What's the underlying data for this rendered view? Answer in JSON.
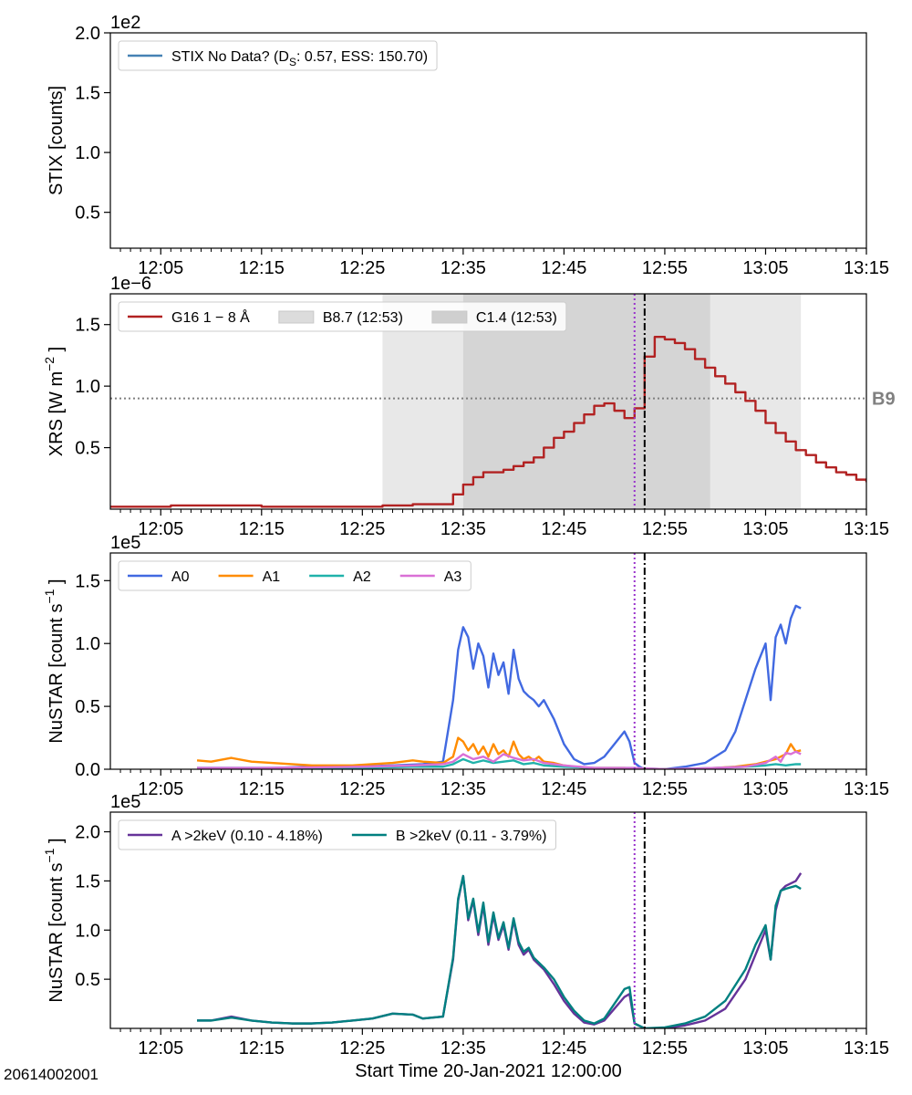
{
  "page": {
    "observation_id": "20614002001"
  },
  "chart_data": [
    {
      "type": "line",
      "panel": "stix",
      "ylabel": "STIX [counts]",
      "multiplier": "1e2",
      "ylim": [
        20,
        200
      ],
      "yticks": [
        50,
        100,
        150,
        200
      ],
      "ytick_labels": [
        "0.5",
        "1.0",
        "1.5",
        "2.0"
      ],
      "xlim_minutes": [
        0,
        75
      ],
      "xticks": [
        5,
        15,
        25,
        35,
        45,
        55,
        65,
        75
      ],
      "xtick_labels": [
        "12:05",
        "12:15",
        "12:25",
        "12:35",
        "12:45",
        "12:55",
        "13:05",
        "13:15"
      ],
      "legend": {
        "position": "upper-left",
        "entries": [
          {
            "name": "STIX No Data? (D",
            "subscript": "S",
            "suffix": ": 0.57, ESS: 150.70)",
            "color": "#4682b4"
          }
        ]
      },
      "series": []
    },
    {
      "type": "line",
      "panel": "xrs",
      "ylabel": "XRS [W m",
      "ylabel_exp": "−2",
      "ylabel_close": "]",
      "multiplier": "1e−6",
      "ylim": [
        0.0,
        1.75
      ],
      "yticks": [
        0.5,
        1.0,
        1.5
      ],
      "ytick_labels": [
        "0.5",
        "1.0",
        "1.5"
      ],
      "xlim_minutes": [
        0,
        75
      ],
      "xticks": [
        5,
        15,
        25,
        35,
        45,
        55,
        65,
        75
      ],
      "xtick_labels": [
        "12:05",
        "12:15",
        "12:25",
        "12:35",
        "12:45",
        "12:55",
        "13:05",
        "13:15"
      ],
      "threshold": {
        "value": 0.9,
        "label": "B9",
        "color": "#808080"
      },
      "shaded_spans": [
        {
          "name": "B8.7 (12:53)",
          "x0": 27,
          "x1": 59.5
        },
        {
          "name": "C1.4 (12:53)",
          "x0": 35,
          "x1": 68.5
        }
      ],
      "vlines": {
        "dotted": 52.0,
        "dashdot": 53.0,
        "dotted_color": "#9932cc",
        "dashdot_color": "#000000"
      },
      "legend": {
        "position": "upper-left",
        "entries": [
          {
            "name": "G16 1 − 8 Å",
            "color": "#b22222"
          },
          {
            "name": "B8.7 (12:53)",
            "color": "#dcdcdc"
          },
          {
            "name": "C1.4 (12:53)",
            "color": "#cfcfcf"
          }
        ]
      },
      "series": [
        {
          "name": "G16 1 − 8 Å",
          "color": "#b22222",
          "step": true,
          "x": [
            0,
            3,
            6,
            9,
            12,
            15,
            18,
            21,
            24,
            27,
            30,
            33,
            34,
            35,
            36,
            37,
            38,
            39,
            40,
            41,
            42,
            43,
            44,
            45,
            46,
            47,
            48,
            49,
            50,
            51,
            52,
            53,
            54,
            55,
            56,
            57,
            58,
            59,
            60,
            61,
            62,
            63,
            64,
            65,
            66,
            67,
            68,
            69,
            70,
            71,
            72,
            73,
            74,
            75
          ],
          "y": [
            0.02,
            0.02,
            0.03,
            0.03,
            0.03,
            0.02,
            0.02,
            0.02,
            0.02,
            0.03,
            0.04,
            0.04,
            0.12,
            0.2,
            0.26,
            0.3,
            0.3,
            0.32,
            0.35,
            0.38,
            0.42,
            0.5,
            0.58,
            0.63,
            0.7,
            0.77,
            0.84,
            0.86,
            0.8,
            0.74,
            0.82,
            1.24,
            1.4,
            1.38,
            1.35,
            1.3,
            1.22,
            1.15,
            1.08,
            1.02,
            0.95,
            0.88,
            0.8,
            0.7,
            0.62,
            0.55,
            0.48,
            0.44,
            0.38,
            0.34,
            0.3,
            0.28,
            0.24,
            0.22
          ]
        }
      ]
    },
    {
      "type": "line",
      "panel": "nustar-quadrants",
      "ylabel": "NuSTAR [count s",
      "ylabel_exp": "−1",
      "ylabel_close": "]",
      "multiplier": "1e5",
      "ylim": [
        0.0,
        1.72
      ],
      "yticks": [
        0.0,
        0.5,
        1.0,
        1.5
      ],
      "ytick_labels": [
        "0.0",
        "0.5",
        "1.0",
        "1.5"
      ],
      "xlim_minutes": [
        0,
        75
      ],
      "xticks": [
        5,
        15,
        25,
        35,
        45,
        55,
        65,
        75
      ],
      "xtick_labels": [
        "12:05",
        "12:15",
        "12:25",
        "12:35",
        "12:45",
        "12:55",
        "13:05",
        "13:15"
      ],
      "vlines": {
        "dotted": 52.0,
        "dashdot": 53.0,
        "dotted_color": "#9932cc",
        "dashdot_color": "#000000"
      },
      "legend": {
        "position": "upper-left",
        "entries": [
          {
            "name": "A0",
            "color": "#4169e1"
          },
          {
            "name": "A1",
            "color": "#ff8c00"
          },
          {
            "name": "A2",
            "color": "#20b2aa"
          },
          {
            "name": "A3",
            "color": "#da70d6"
          }
        ]
      },
      "series": [
        {
          "name": "A0",
          "color": "#4169e1",
          "x": [
            8.6,
            12,
            16,
            20,
            24,
            28,
            31,
            33,
            34,
            34.5,
            35,
            35.5,
            36,
            36.5,
            37,
            37.5,
            38,
            38.5,
            39,
            39.5,
            40,
            40.5,
            41,
            41.5,
            42,
            42.5,
            43,
            44,
            45,
            46,
            47,
            48,
            49,
            50,
            51,
            51.5,
            52,
            52.5,
            53,
            55,
            57,
            59,
            61,
            62,
            63,
            64,
            64.5,
            65,
            65.5,
            66,
            66.5,
            67,
            67.5,
            68,
            68.5
          ],
          "y": [
            0.01,
            0.01,
            0.01,
            0.02,
            0.02,
            0.03,
            0.04,
            0.06,
            0.55,
            0.95,
            1.13,
            1.05,
            0.8,
            1.0,
            0.9,
            0.65,
            0.92,
            0.75,
            0.85,
            0.6,
            0.95,
            0.72,
            0.62,
            0.58,
            0.55,
            0.5,
            0.55,
            0.4,
            0.2,
            0.08,
            0.04,
            0.05,
            0.1,
            0.2,
            0.3,
            0.22,
            0.05,
            0.02,
            0.0,
            0.0,
            0.02,
            0.05,
            0.15,
            0.3,
            0.55,
            0.8,
            0.9,
            1.0,
            0.55,
            1.05,
            1.15,
            1.0,
            1.2,
            1.3,
            1.28
          ]
        },
        {
          "name": "A1",
          "color": "#ff8c00",
          "x": [
            8.6,
            10,
            12,
            14,
            16,
            18,
            20,
            22,
            24,
            26,
            28,
            30,
            31,
            33,
            34,
            34.5,
            35,
            35.5,
            36,
            36.5,
            37,
            37.5,
            38,
            38.5,
            39,
            39.5,
            40,
            40.5,
            41,
            41.5,
            42,
            42.5,
            43,
            44,
            45,
            46,
            47,
            49,
            51,
            53,
            57,
            60,
            62,
            64,
            66,
            67,
            67.5,
            68,
            68.5
          ],
          "y": [
            0.07,
            0.06,
            0.09,
            0.06,
            0.05,
            0.04,
            0.03,
            0.03,
            0.03,
            0.04,
            0.05,
            0.07,
            0.06,
            0.05,
            0.1,
            0.25,
            0.22,
            0.15,
            0.2,
            0.12,
            0.18,
            0.1,
            0.2,
            0.12,
            0.15,
            0.1,
            0.22,
            0.12,
            0.08,
            0.1,
            0.07,
            0.1,
            0.06,
            0.05,
            0.03,
            0.02,
            0.01,
            0.01,
            0.01,
            0.0,
            0.0,
            0.01,
            0.02,
            0.04,
            0.08,
            0.12,
            0.2,
            0.14,
            0.15
          ]
        },
        {
          "name": "A2",
          "color": "#20b2aa",
          "x": [
            8.6,
            15,
            25,
            30,
            33,
            34,
            35,
            36,
            37,
            38,
            39,
            40,
            41,
            42,
            43,
            45,
            48,
            52,
            55,
            60,
            63,
            65,
            66,
            67,
            68,
            68.5
          ],
          "y": [
            0.01,
            0.01,
            0.01,
            0.02,
            0.02,
            0.04,
            0.08,
            0.05,
            0.07,
            0.05,
            0.06,
            0.07,
            0.04,
            0.05,
            0.03,
            0.02,
            0.01,
            0.01,
            0.0,
            0.01,
            0.02,
            0.03,
            0.04,
            0.03,
            0.04,
            0.04
          ]
        },
        {
          "name": "A3",
          "color": "#da70d6",
          "x": [
            8.6,
            15,
            25,
            30,
            33,
            34,
            35,
            36,
            37,
            38,
            39,
            40,
            41,
            42,
            43,
            45,
            48,
            52,
            55,
            60,
            63,
            65,
            66,
            66.5,
            67,
            67.5,
            68,
            68.5
          ],
          "y": [
            0.01,
            0.01,
            0.02,
            0.03,
            0.04,
            0.06,
            0.12,
            0.08,
            0.1,
            0.06,
            0.12,
            0.09,
            0.07,
            0.08,
            0.05,
            0.03,
            0.01,
            0.01,
            0.0,
            0.01,
            0.02,
            0.05,
            0.1,
            0.06,
            0.13,
            0.12,
            0.14,
            0.12
          ]
        }
      ]
    },
    {
      "type": "line",
      "panel": "nustar-fpm",
      "ylabel": "NuSTAR [count s",
      "ylabel_exp": "−1",
      "ylabel_close": "]",
      "multiplier": "1e5",
      "xlabel": "Start Time 20-Jan-2021 12:00:00",
      "ylim": [
        0.0,
        2.2
      ],
      "yticks": [
        0.5,
        1.0,
        1.5,
        2.0
      ],
      "ytick_labels": [
        "0.5",
        "1.0",
        "1.5",
        "2.0"
      ],
      "xlim_minutes": [
        0,
        75
      ],
      "xticks": [
        5,
        15,
        25,
        35,
        45,
        55,
        65,
        75
      ],
      "xtick_labels": [
        "12:05",
        "12:15",
        "12:25",
        "12:35",
        "12:45",
        "12:55",
        "13:05",
        "13:15"
      ],
      "vlines": {
        "dotted": 52.0,
        "dashdot": 53.0,
        "dotted_color": "#9932cc",
        "dashdot_color": "#000000"
      },
      "legend": {
        "position": "upper-left",
        "entries": [
          {
            "name": "A >2keV (0.10 - 4.18%)",
            "color": "#663399"
          },
          {
            "name": "B >2keV (0.11 - 3.79%)",
            "color": "#008080"
          }
        ]
      },
      "series": [
        {
          "name": "A >2keV (0.10 - 4.18%)",
          "color": "#663399",
          "x": [
            8.6,
            10,
            12,
            14,
            16,
            18,
            20,
            22,
            24,
            26,
            28,
            30,
            31,
            33,
            34,
            34.5,
            35,
            35.5,
            36,
            36.5,
            37,
            37.5,
            38,
            38.5,
            39,
            39.5,
            40,
            40.5,
            41,
            41.5,
            42,
            43,
            44,
            45,
            46,
            47,
            48,
            49,
            50,
            51,
            51.5,
            52,
            53,
            55,
            57,
            59,
            61,
            63,
            64,
            65,
            65.5,
            66,
            66.5,
            67,
            68,
            68.5
          ],
          "y": [
            0.08,
            0.08,
            0.12,
            0.08,
            0.06,
            0.05,
            0.05,
            0.06,
            0.08,
            0.1,
            0.15,
            0.14,
            0.1,
            0.12,
            0.7,
            1.3,
            1.55,
            1.1,
            1.3,
            0.95,
            1.25,
            0.85,
            1.15,
            0.9,
            1.05,
            0.8,
            1.1,
            0.85,
            0.75,
            0.8,
            0.7,
            0.6,
            0.45,
            0.28,
            0.15,
            0.06,
            0.04,
            0.08,
            0.2,
            0.32,
            0.35,
            0.05,
            0.0,
            0.0,
            0.03,
            0.08,
            0.2,
            0.5,
            0.75,
            1.0,
            0.7,
            1.2,
            1.4,
            1.45,
            1.5,
            1.58
          ]
        },
        {
          "name": "B >2keV (0.11 - 3.79%)",
          "color": "#008080",
          "x": [
            8.6,
            10,
            12,
            14,
            16,
            18,
            20,
            22,
            24,
            26,
            28,
            30,
            31,
            33,
            34,
            34.5,
            35,
            35.5,
            36,
            36.5,
            37,
            37.5,
            38,
            38.5,
            39,
            39.5,
            40,
            40.5,
            41,
            41.5,
            42,
            43,
            44,
            45,
            46,
            47,
            48,
            49,
            50,
            51,
            51.5,
            52,
            53,
            55,
            57,
            59,
            61,
            63,
            64,
            65,
            65.5,
            66,
            66.5,
            67,
            68,
            68.5
          ],
          "y": [
            0.08,
            0.08,
            0.11,
            0.08,
            0.06,
            0.05,
            0.05,
            0.06,
            0.08,
            0.1,
            0.15,
            0.14,
            0.1,
            0.12,
            0.72,
            1.32,
            1.55,
            1.12,
            1.32,
            0.98,
            1.28,
            0.88,
            1.18,
            0.92,
            1.08,
            0.82,
            1.12,
            0.88,
            0.78,
            0.82,
            0.72,
            0.62,
            0.5,
            0.32,
            0.18,
            0.08,
            0.05,
            0.1,
            0.25,
            0.4,
            0.42,
            0.05,
            0.0,
            0.01,
            0.05,
            0.12,
            0.28,
            0.6,
            0.85,
            1.05,
            0.7,
            1.25,
            1.4,
            1.42,
            1.45,
            1.42
          ]
        }
      ]
    }
  ]
}
